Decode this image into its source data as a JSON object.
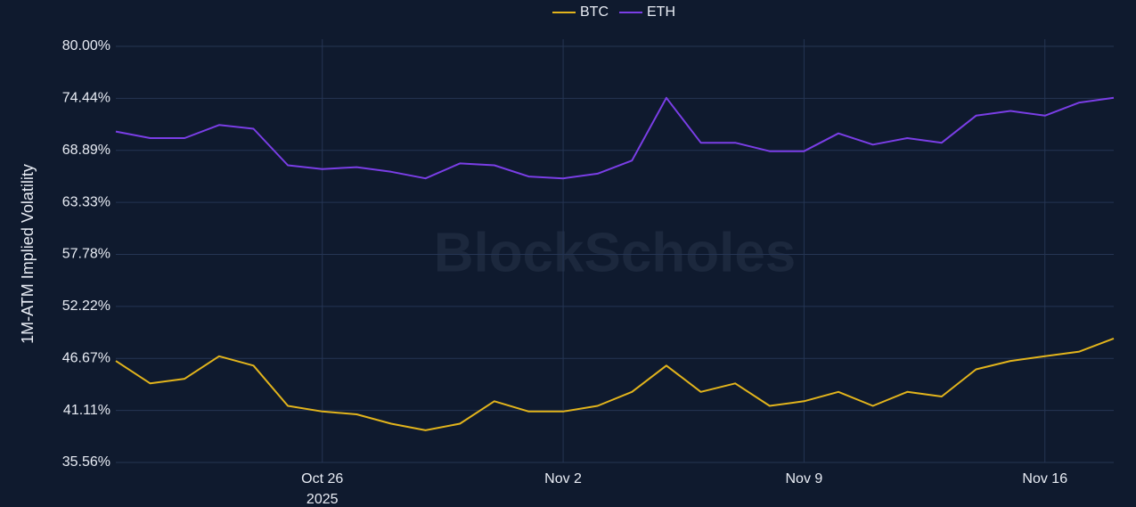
{
  "chart_data": {
    "type": "line",
    "y_axis_label": "1M-ATM Implied Volatility",
    "watermark": "BlockScholes",
    "x": [
      "2025-10-20",
      "2025-10-21",
      "2025-10-22",
      "2025-10-23",
      "2025-10-24",
      "2025-10-25",
      "2025-10-26",
      "2025-10-27",
      "2025-10-28",
      "2025-10-29",
      "2025-10-30",
      "2025-10-31",
      "2025-11-01",
      "2025-11-02",
      "2025-11-03",
      "2025-11-04",
      "2025-11-05",
      "2025-11-06",
      "2025-11-07",
      "2025-11-08",
      "2025-11-09",
      "2025-11-10",
      "2025-11-11",
      "2025-11-12",
      "2025-11-13",
      "2025-11-14",
      "2025-11-15",
      "2025-11-16",
      "2025-11-17",
      "2025-11-18"
    ],
    "series": [
      {
        "name": "BTC",
        "color": "#e2b41c",
        "values": [
          46.4,
          44.0,
          44.5,
          46.9,
          45.9,
          41.6,
          41.0,
          40.7,
          39.7,
          39.0,
          39.7,
          42.1,
          41.0,
          41.0,
          41.6,
          43.1,
          45.9,
          43.1,
          44.0,
          41.6,
          42.1,
          43.1,
          41.6,
          43.1,
          42.6,
          45.5,
          46.4,
          46.9,
          47.4,
          48.8
        ]
      },
      {
        "name": "ETH",
        "color": "#7a3ee6",
        "values": [
          70.9,
          70.2,
          70.2,
          71.6,
          71.2,
          67.3,
          66.9,
          67.1,
          66.6,
          65.9,
          67.5,
          67.3,
          66.1,
          65.9,
          66.4,
          67.8,
          74.5,
          69.7,
          69.7,
          68.8,
          68.8,
          70.7,
          69.5,
          70.2,
          69.7,
          72.6,
          73.1,
          72.6,
          74.0,
          74.5
        ]
      }
    ],
    "xlim": [
      "2025-10-20",
      "2025-11-18"
    ],
    "xticks": [
      {
        "value": "2025-10-26",
        "label": "Oct 26"
      },
      {
        "value": "2025-11-02",
        "label": "Nov 2"
      },
      {
        "value": "2025-11-09",
        "label": "Nov 9"
      },
      {
        "value": "2025-11-16",
        "label": "Nov 16"
      }
    ],
    "xtick_year_label": "2025",
    "ylim": [
      35.56,
      80.0
    ],
    "yticks": [
      {
        "value": 35.56,
        "label": "35.56%"
      },
      {
        "value": 41.11,
        "label": "41.11%"
      },
      {
        "value": 46.67,
        "label": "46.67%"
      },
      {
        "value": 52.22,
        "label": "52.22%"
      },
      {
        "value": 57.78,
        "label": "57.78%"
      },
      {
        "value": 63.33,
        "label": "63.33%"
      },
      {
        "value": 68.89,
        "label": "68.89%"
      },
      {
        "value": 74.44,
        "label": "74.44%"
      },
      {
        "value": 80.0,
        "label": "80.00%"
      }
    ],
    "grid": true,
    "legend": "top"
  }
}
